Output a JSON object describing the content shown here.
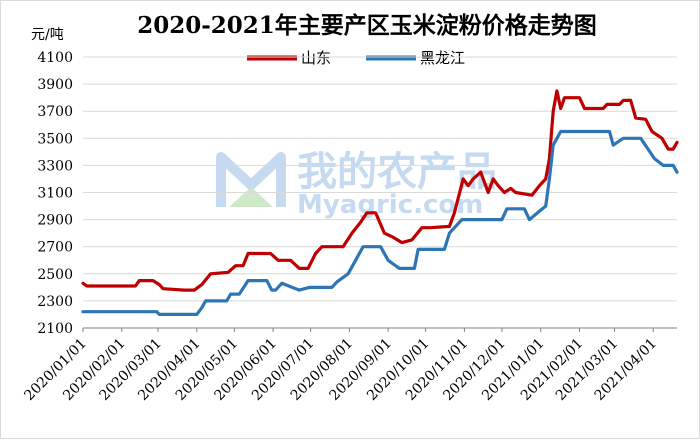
{
  "watermark": {
    "text_cn": "我的农产品",
    "text_en": "Myagric.com",
    "color": "#c5d9f0"
  },
  "chart_data": {
    "type": "line",
    "title": "2020-2021年主要产区玉米淀粉价格走势图",
    "ylabel": "元/吨",
    "xlabel": "",
    "ylim": [
      2100,
      4100
    ],
    "yticks": [
      2100,
      2300,
      2500,
      2700,
      2900,
      3100,
      3300,
      3500,
      3700,
      3900,
      4100
    ],
    "xlim": [
      "2020-01-01",
      "2021-04-20"
    ],
    "xticks": [
      "2020/01/01",
      "2020/02/01",
      "2020/03/01",
      "2020/04/01",
      "2020/05/01",
      "2020/06/01",
      "2020/07/01",
      "2020/08/01",
      "2020/09/01",
      "2020/10/01",
      "2020/11/01",
      "2020/12/01",
      "2021/01/01",
      "2021/02/01",
      "2021/03/01",
      "2021/04/01"
    ],
    "grid": "horizontal",
    "legend": "top-center",
    "series": [
      {
        "name": "山东",
        "color": "#c00000",
        "points": [
          [
            "2020-01-01",
            2430
          ],
          [
            "2020-01-04",
            2410
          ],
          [
            "2020-02-12",
            2410
          ],
          [
            "2020-02-15",
            2450
          ],
          [
            "2020-02-26",
            2450
          ],
          [
            "2020-03-02",
            2420
          ],
          [
            "2020-03-05",
            2390
          ],
          [
            "2020-03-22",
            2380
          ],
          [
            "2020-03-30",
            2380
          ],
          [
            "2020-04-05",
            2420
          ],
          [
            "2020-04-12",
            2500
          ],
          [
            "2020-04-26",
            2510
          ],
          [
            "2020-05-02",
            2560
          ],
          [
            "2020-05-08",
            2560
          ],
          [
            "2020-05-12",
            2650
          ],
          [
            "2020-05-30",
            2650
          ],
          [
            "2020-06-05",
            2600
          ],
          [
            "2020-06-15",
            2600
          ],
          [
            "2020-06-22",
            2540
          ],
          [
            "2020-06-29",
            2540
          ],
          [
            "2020-07-05",
            2650
          ],
          [
            "2020-07-10",
            2700
          ],
          [
            "2020-07-27",
            2700
          ],
          [
            "2020-08-03",
            2800
          ],
          [
            "2020-08-10",
            2880
          ],
          [
            "2020-08-15",
            2950
          ],
          [
            "2020-08-22",
            2950
          ],
          [
            "2020-08-29",
            2800
          ],
          [
            "2020-09-05",
            2770
          ],
          [
            "2020-09-12",
            2730
          ],
          [
            "2020-09-20",
            2750
          ],
          [
            "2020-09-28",
            2840
          ],
          [
            "2020-10-05",
            2840
          ],
          [
            "2020-10-20",
            2850
          ],
          [
            "2020-10-24",
            2950
          ],
          [
            "2020-10-31",
            3200
          ],
          [
            "2020-11-04",
            3150
          ],
          [
            "2020-11-08",
            3200
          ],
          [
            "2020-11-14",
            3250
          ],
          [
            "2020-11-20",
            3100
          ],
          [
            "2020-11-24",
            3200
          ],
          [
            "2020-11-28",
            3150
          ],
          [
            "2020-12-03",
            3100
          ],
          [
            "2020-12-08",
            3130
          ],
          [
            "2020-12-12",
            3100
          ],
          [
            "2020-12-25",
            3080
          ],
          [
            "2020-12-31",
            3150
          ],
          [
            "2021-01-05",
            3200
          ],
          [
            "2021-01-08",
            3350
          ],
          [
            "2021-01-11",
            3700
          ],
          [
            "2021-01-14",
            3850
          ],
          [
            "2021-01-17",
            3720
          ],
          [
            "2021-01-20",
            3800
          ],
          [
            "2021-02-01",
            3800
          ],
          [
            "2021-02-05",
            3720
          ],
          [
            "2021-02-20",
            3720
          ],
          [
            "2021-02-23",
            3750
          ],
          [
            "2021-03-05",
            3750
          ],
          [
            "2021-03-08",
            3780
          ],
          [
            "2021-03-14",
            3780
          ],
          [
            "2021-03-18",
            3650
          ],
          [
            "2021-03-26",
            3640
          ],
          [
            "2021-03-31",
            3550
          ],
          [
            "2021-04-08",
            3500
          ],
          [
            "2021-04-13",
            3420
          ],
          [
            "2021-04-17",
            3420
          ],
          [
            "2021-04-20",
            3470
          ]
        ]
      },
      {
        "name": "黑龙江",
        "color": "#2e75b6",
        "points": [
          [
            "2020-01-01",
            2220
          ],
          [
            "2020-02-29",
            2220
          ],
          [
            "2020-03-02",
            2200
          ],
          [
            "2020-04-01",
            2200
          ],
          [
            "2020-04-05",
            2250
          ],
          [
            "2020-04-08",
            2300
          ],
          [
            "2020-04-25",
            2300
          ],
          [
            "2020-04-28",
            2350
          ],
          [
            "2020-05-05",
            2350
          ],
          [
            "2020-05-12",
            2450
          ],
          [
            "2020-05-27",
            2450
          ],
          [
            "2020-05-31",
            2380
          ],
          [
            "2020-06-03",
            2380
          ],
          [
            "2020-06-08",
            2430
          ],
          [
            "2020-06-22",
            2380
          ],
          [
            "2020-06-30",
            2400
          ],
          [
            "2020-07-18",
            2400
          ],
          [
            "2020-07-22",
            2440
          ],
          [
            "2020-07-31",
            2500
          ],
          [
            "2020-08-06",
            2600
          ],
          [
            "2020-08-12",
            2700
          ],
          [
            "2020-08-26",
            2700
          ],
          [
            "2020-09-01",
            2600
          ],
          [
            "2020-09-10",
            2540
          ],
          [
            "2020-09-22",
            2540
          ],
          [
            "2020-09-25",
            2680
          ],
          [
            "2020-10-16",
            2680
          ],
          [
            "2020-10-20",
            2800
          ],
          [
            "2020-10-30",
            2900
          ],
          [
            "2020-12-01",
            2900
          ],
          [
            "2020-12-05",
            2980
          ],
          [
            "2020-12-19",
            2980
          ],
          [
            "2020-12-23",
            2900
          ],
          [
            "2021-01-01",
            2970
          ],
          [
            "2021-01-05",
            3000
          ],
          [
            "2021-01-08",
            3200
          ],
          [
            "2021-01-11",
            3450
          ],
          [
            "2021-01-17",
            3550
          ],
          [
            "2021-02-25",
            3550
          ],
          [
            "2021-02-28",
            3450
          ],
          [
            "2021-03-08",
            3500
          ],
          [
            "2021-03-22",
            3500
          ],
          [
            "2021-04-02",
            3350
          ],
          [
            "2021-04-09",
            3300
          ],
          [
            "2021-04-17",
            3300
          ],
          [
            "2021-04-20",
            3250
          ]
        ]
      }
    ]
  }
}
